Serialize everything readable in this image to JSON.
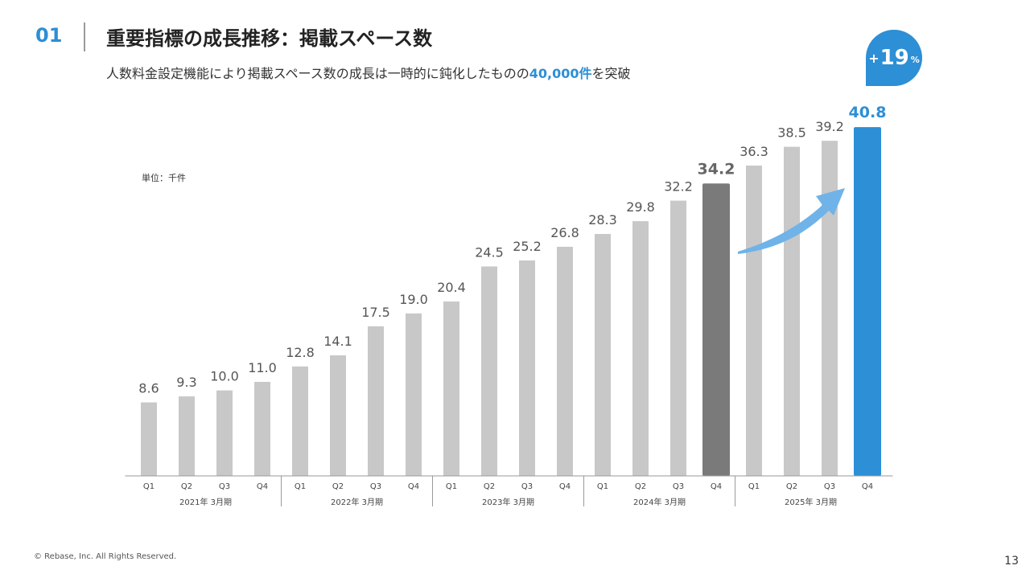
{
  "header": {
    "section_number": "01",
    "title": "重要指標の成長推移：掲載スペース数",
    "subtitle_prefix": "人数料金設定機能により掲載スペース数の成長は一時的に鈍化したものの",
    "subtitle_highlight": "40,000件",
    "subtitle_suffix": "を突破"
  },
  "chart_data": {
    "type": "bar",
    "unit_label": "単位：千件",
    "categories": [
      "Q1",
      "Q2",
      "Q3",
      "Q4",
      "Q1",
      "Q2",
      "Q3",
      "Q4",
      "Q1",
      "Q2",
      "Q3",
      "Q4",
      "Q1",
      "Q2",
      "Q3",
      "Q4",
      "Q1",
      "Q2",
      "Q3",
      "Q4"
    ],
    "groups": [
      "2021年 3月期",
      "2022年 3月期",
      "2023年 3月期",
      "2024年 3月期",
      "2025年 3月期"
    ],
    "values": [
      8.6,
      9.3,
      10.0,
      11.0,
      12.8,
      14.1,
      17.5,
      19.0,
      20.4,
      24.5,
      25.2,
      26.8,
      28.3,
      29.8,
      32.2,
      34.2,
      36.3,
      38.5,
      39.2,
      40.8
    ],
    "value_labels": [
      "8.6",
      "9.3",
      "10.0",
      "11.0",
      "12.8",
      "14.1",
      "17.5",
      "19.0",
      "20.4",
      "24.5",
      "25.2",
      "26.8",
      "28.3",
      "29.8",
      "32.2",
      "34.2",
      "36.3",
      "38.5",
      "39.2",
      "40.8"
    ],
    "highlight_index": 19,
    "emphasis_index": 15,
    "ylim": [
      0,
      41
    ],
    "colors": {
      "default": "#c8c8c8",
      "emphasis": "#7a7a7a",
      "highlight": "#2d8fd5",
      "arrow": "#6fb3e8"
    },
    "growth_badge": {
      "sign": "+",
      "value": "19",
      "unit": "%"
    }
  },
  "footer": {
    "copyright": "© Rebase, Inc. All Rights Reserved.",
    "page_number": "13"
  }
}
